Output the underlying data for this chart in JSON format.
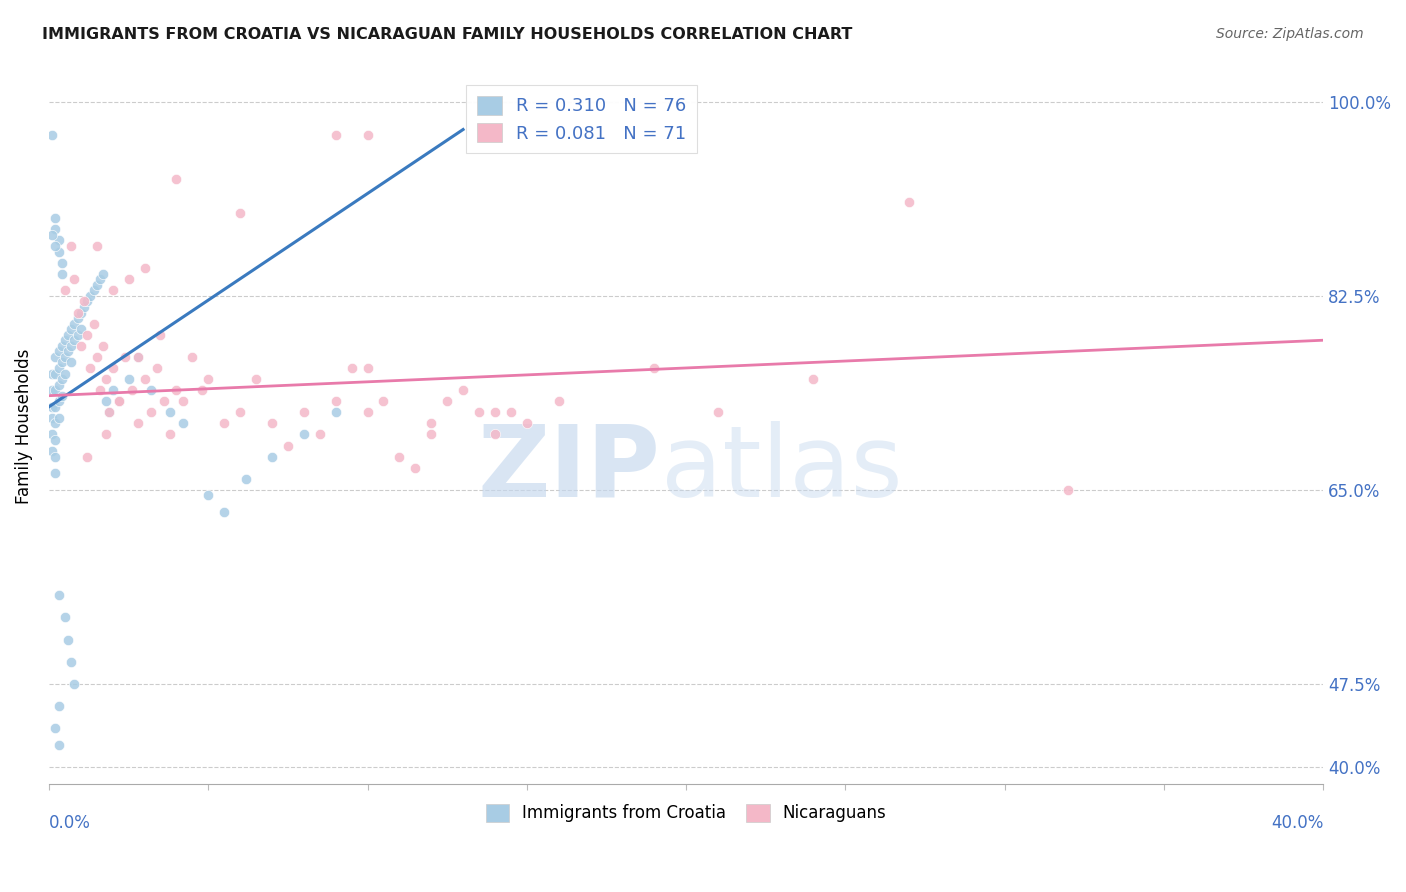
{
  "title": "IMMIGRANTS FROM CROATIA VS NICARAGUAN FAMILY HOUSEHOLDS CORRELATION CHART",
  "source": "Source: ZipAtlas.com",
  "ylabel": "Family Households",
  "legend_blue_r": "R = 0.310",
  "legend_blue_n": "N = 76",
  "legend_pink_r": "R = 0.081",
  "legend_pink_n": "N = 71",
  "blue_color": "#a8cce4",
  "pink_color": "#f4b8c8",
  "blue_line_color": "#3a7abf",
  "pink_line_color": "#e87aaa",
  "xmin": 0.0,
  "xmax": 0.4,
  "ymin": 0.385,
  "ymax": 1.03,
  "ytick_vals": [
    0.4,
    0.475,
    0.65,
    0.825,
    1.0
  ],
  "ytick_labels": [
    "40.0%",
    "47.5%",
    "65.0%",
    "82.5%",
    "100.0%"
  ],
  "blue_line_x": [
    0.0,
    0.13
  ],
  "blue_line_y": [
    0.725,
    0.975
  ],
  "pink_line_x": [
    0.0,
    0.4
  ],
  "pink_line_y": [
    0.735,
    0.785
  ],
  "blue_x": [
    0.001,
    0.001,
    0.001,
    0.001,
    0.001,
    0.001,
    0.002,
    0.002,
    0.002,
    0.002,
    0.002,
    0.002,
    0.002,
    0.002,
    0.003,
    0.003,
    0.003,
    0.003,
    0.003,
    0.004,
    0.004,
    0.004,
    0.004,
    0.005,
    0.005,
    0.005,
    0.006,
    0.006,
    0.007,
    0.007,
    0.007,
    0.008,
    0.008,
    0.009,
    0.009,
    0.01,
    0.01,
    0.011,
    0.012,
    0.013,
    0.014,
    0.015,
    0.016,
    0.017,
    0.018,
    0.019,
    0.02,
    0.022,
    0.025,
    0.028,
    0.032,
    0.038,
    0.042,
    0.05,
    0.055,
    0.062,
    0.07,
    0.08,
    0.09,
    0.003,
    0.003,
    0.004,
    0.004,
    0.002,
    0.002,
    0.003,
    0.005,
    0.006,
    0.007,
    0.008,
    0.003,
    0.002,
    0.001,
    0.001,
    0.002,
    0.003
  ],
  "blue_y": [
    0.755,
    0.74,
    0.725,
    0.715,
    0.7,
    0.685,
    0.77,
    0.755,
    0.74,
    0.725,
    0.71,
    0.695,
    0.68,
    0.665,
    0.775,
    0.76,
    0.745,
    0.73,
    0.715,
    0.78,
    0.765,
    0.75,
    0.735,
    0.785,
    0.77,
    0.755,
    0.79,
    0.775,
    0.795,
    0.78,
    0.765,
    0.8,
    0.785,
    0.805,
    0.79,
    0.81,
    0.795,
    0.815,
    0.82,
    0.825,
    0.83,
    0.835,
    0.84,
    0.845,
    0.73,
    0.72,
    0.74,
    0.73,
    0.75,
    0.77,
    0.74,
    0.72,
    0.71,
    0.645,
    0.63,
    0.66,
    0.68,
    0.7,
    0.72,
    0.875,
    0.865,
    0.855,
    0.845,
    0.895,
    0.885,
    0.555,
    0.535,
    0.515,
    0.495,
    0.475,
    0.455,
    0.435,
    0.97,
    0.88,
    0.87,
    0.42
  ],
  "pink_x": [
    0.005,
    0.007,
    0.008,
    0.009,
    0.01,
    0.011,
    0.012,
    0.013,
    0.014,
    0.015,
    0.016,
    0.017,
    0.018,
    0.019,
    0.02,
    0.022,
    0.024,
    0.026,
    0.028,
    0.03,
    0.032,
    0.034,
    0.036,
    0.038,
    0.04,
    0.042,
    0.045,
    0.048,
    0.05,
    0.055,
    0.06,
    0.065,
    0.07,
    0.075,
    0.08,
    0.085,
    0.09,
    0.095,
    0.1,
    0.105,
    0.11,
    0.115,
    0.12,
    0.125,
    0.13,
    0.135,
    0.14,
    0.145,
    0.15,
    0.09,
    0.1,
    0.04,
    0.06,
    0.03,
    0.025,
    0.015,
    0.02,
    0.035,
    0.028,
    0.022,
    0.018,
    0.012,
    0.27,
    0.32,
    0.24,
    0.21,
    0.19,
    0.16,
    0.14,
    0.12,
    0.1
  ],
  "pink_y": [
    0.83,
    0.87,
    0.84,
    0.81,
    0.78,
    0.82,
    0.79,
    0.76,
    0.8,
    0.77,
    0.74,
    0.78,
    0.75,
    0.72,
    0.76,
    0.73,
    0.77,
    0.74,
    0.71,
    0.75,
    0.72,
    0.76,
    0.73,
    0.7,
    0.74,
    0.73,
    0.77,
    0.74,
    0.75,
    0.71,
    0.72,
    0.75,
    0.71,
    0.69,
    0.72,
    0.7,
    0.73,
    0.76,
    0.72,
    0.73,
    0.68,
    0.67,
    0.71,
    0.73,
    0.74,
    0.72,
    0.7,
    0.72,
    0.71,
    0.97,
    0.97,
    0.93,
    0.9,
    0.85,
    0.84,
    0.87,
    0.83,
    0.79,
    0.77,
    0.73,
    0.7,
    0.68,
    0.91,
    0.65,
    0.75,
    0.72,
    0.76,
    0.73,
    0.72,
    0.7,
    0.76
  ]
}
